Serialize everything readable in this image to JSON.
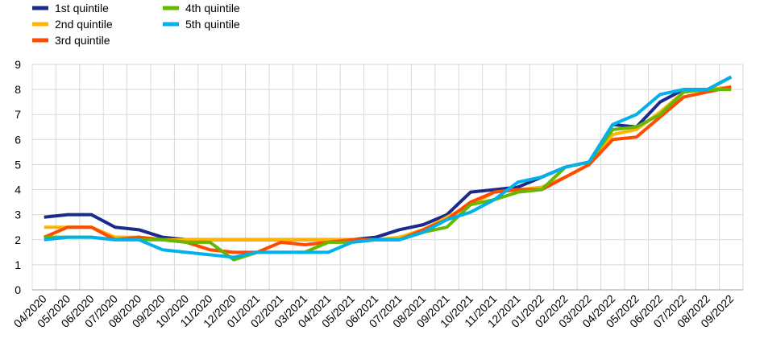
{
  "chart_data": {
    "type": "line",
    "categories": [
      "04/2020",
      "05/2020",
      "06/2020",
      "07/2020",
      "08/2020",
      "09/2020",
      "10/2020",
      "11/2020",
      "12/2020",
      "01/2021",
      "02/2021",
      "03/2021",
      "04/2021",
      "05/2021",
      "06/2021",
      "07/2021",
      "08/2021",
      "09/2021",
      "10/2021",
      "11/2021",
      "12/2021",
      "01/2022",
      "02/2022",
      "03/2022",
      "04/2022",
      "05/2022",
      "06/2022",
      "07/2022",
      "08/2022",
      "09/2022"
    ],
    "ylim": [
      0,
      9
    ],
    "yticks": [
      0,
      1,
      2,
      3,
      4,
      5,
      6,
      7,
      8,
      9
    ],
    "grid": true,
    "legend_position": "top-left",
    "series": [
      {
        "name": "1st quintile",
        "color": "#1a2b8c",
        "values": [
          2.9,
          3.0,
          3.0,
          2.5,
          2.4,
          2.1,
          2.0,
          2.0,
          2.0,
          2.0,
          2.0,
          2.0,
          2.0,
          2.0,
          2.1,
          2.4,
          2.6,
          3.0,
          3.9,
          4.0,
          4.1,
          4.5,
          4.9,
          5.1,
          6.6,
          6.5,
          7.5,
          8.0,
          8.0,
          8.5
        ]
      },
      {
        "name": "2nd quintile",
        "color": "#ffb400",
        "values": [
          2.5,
          2.5,
          2.5,
          2.1,
          2.1,
          2.0,
          2.0,
          2.0,
          2.0,
          2.0,
          2.0,
          2.0,
          2.0,
          2.0,
          2.0,
          2.1,
          2.4,
          2.9,
          3.4,
          3.9,
          4.0,
          4.1,
          4.5,
          5.0,
          6.2,
          6.4,
          7.1,
          7.9,
          8.0,
          8.1
        ]
      },
      {
        "name": "3rd quintile",
        "color": "#ff4b00",
        "values": [
          2.1,
          2.5,
          2.5,
          2.0,
          2.1,
          2.0,
          1.9,
          1.6,
          1.5,
          1.5,
          1.9,
          1.8,
          1.9,
          2.0,
          2.0,
          2.0,
          2.4,
          2.8,
          3.5,
          3.9,
          4.0,
          4.0,
          4.5,
          5.0,
          6.0,
          6.1,
          6.9,
          7.7,
          7.9,
          8.1
        ]
      },
      {
        "name": "4th quintile",
        "color": "#65b800",
        "values": [
          2.1,
          2.1,
          2.1,
          2.0,
          2.0,
          2.0,
          1.9,
          1.9,
          1.2,
          1.5,
          1.5,
          1.5,
          1.9,
          1.9,
          2.0,
          2.0,
          2.3,
          2.5,
          3.4,
          3.6,
          3.9,
          4.0,
          4.9,
          5.1,
          6.4,
          6.5,
          7.0,
          7.9,
          8.0,
          8.0
        ]
      },
      {
        "name": "5th quintile",
        "color": "#00b1ea",
        "values": [
          2.0,
          2.1,
          2.1,
          2.0,
          2.0,
          1.6,
          1.5,
          1.4,
          1.3,
          1.5,
          1.5,
          1.5,
          1.5,
          1.9,
          2.0,
          2.0,
          2.3,
          2.8,
          3.1,
          3.6,
          4.3,
          4.5,
          4.9,
          5.1,
          6.6,
          7.0,
          7.8,
          8.0,
          8.0,
          8.5
        ]
      }
    ]
  }
}
